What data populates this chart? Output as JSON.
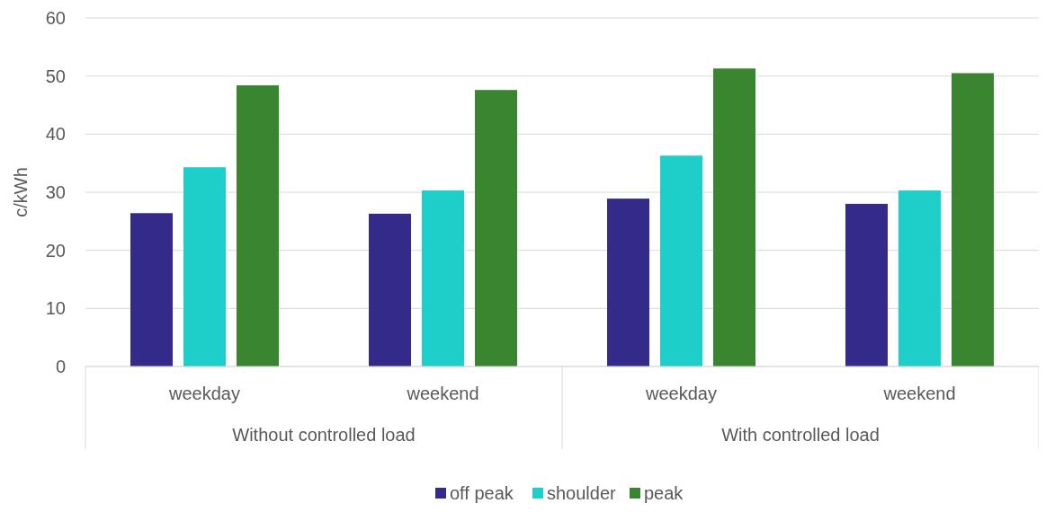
{
  "chart_data": {
    "type": "bar",
    "ylabel": "c/kWh",
    "categories": [
      "weekday",
      "weekend",
      "weekday",
      "weekend"
    ],
    "annotations": [
      "Without controlled load",
      "With controlled load"
    ],
    "series": [
      {
        "name": "off peak",
        "color": "#332a8a",
        "values": [
          26.4,
          26.3,
          28.9,
          28.0
        ]
      },
      {
        "name": "shoulder",
        "color": "#1ecfc9",
        "values": [
          34.3,
          30.3,
          36.3,
          30.3
        ]
      },
      {
        "name": "peak",
        "color": "#3a8530",
        "values": [
          48.4,
          47.6,
          51.3,
          50.5
        ]
      }
    ],
    "ylim": [
      0,
      60
    ],
    "yticks": [
      0,
      10,
      20,
      30,
      40,
      50,
      60
    ],
    "grid": "y",
    "legend": "bottom"
  }
}
